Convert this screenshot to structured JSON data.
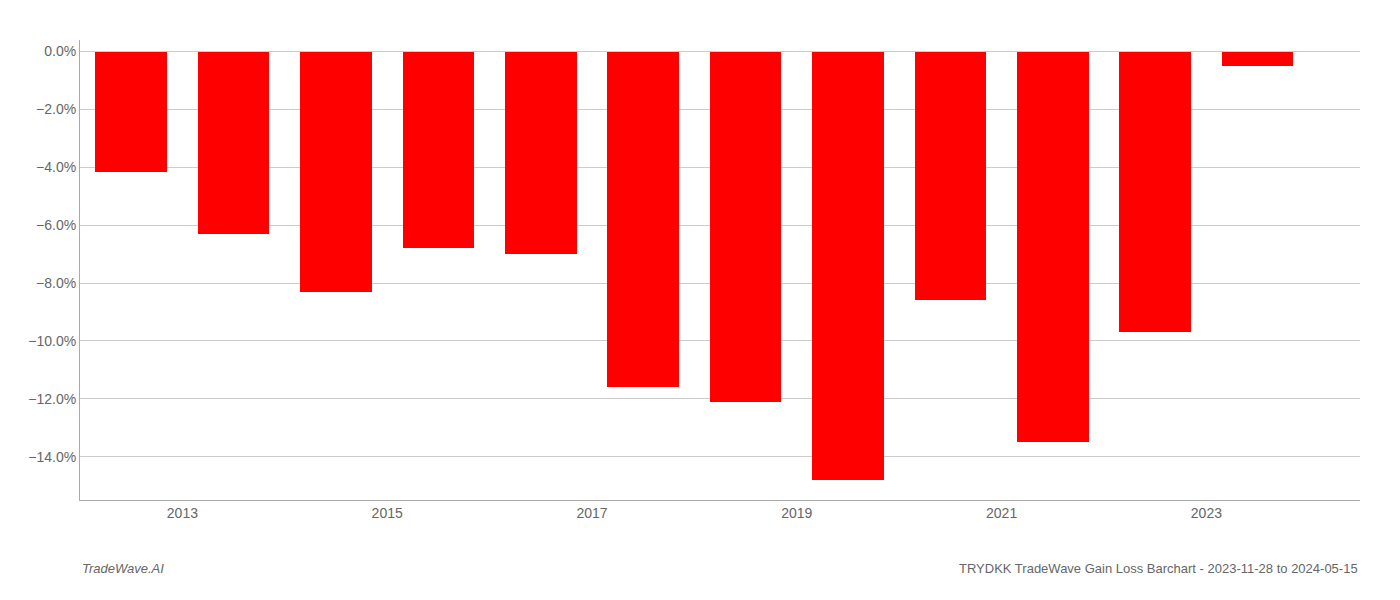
{
  "chart_data": {
    "type": "bar",
    "x": [
      2012.5,
      2013.5,
      2014.5,
      2015.5,
      2016.5,
      2017.5,
      2018.5,
      2019.5,
      2020.5,
      2021.5,
      2022.5,
      2023.5
    ],
    "values": [
      -4.15,
      -6.3,
      -8.3,
      -6.8,
      -7.0,
      -11.6,
      -12.1,
      -14.8,
      -8.6,
      -13.5,
      -9.7,
      -0.5
    ],
    "color": "#ff0000",
    "xlim": [
      2012.0,
      2024.5
    ],
    "xticks": [
      2013,
      2015,
      2017,
      2019,
      2021,
      2023
    ],
    "ylim": [
      -15.5,
      0.4
    ],
    "yticks": [
      {
        "value": 0.0,
        "label": "0.0%"
      },
      {
        "value": -2.0,
        "label": "−2.0%"
      },
      {
        "value": -4.0,
        "label": "−4.0%"
      },
      {
        "value": -6.0,
        "label": "−6.0%"
      },
      {
        "value": -8.0,
        "label": "−8.0%"
      },
      {
        "value": -10.0,
        "label": "−10.0%"
      },
      {
        "value": -12.0,
        "label": "−12.0%"
      },
      {
        "value": -14.0,
        "label": "−14.0%"
      }
    ],
    "grid": true,
    "annotations": [
      "TradeWave.AI",
      "TRYDKK TradeWave Gain Loss Barchart - 2023-11-28 to 2024-05-15"
    ]
  }
}
